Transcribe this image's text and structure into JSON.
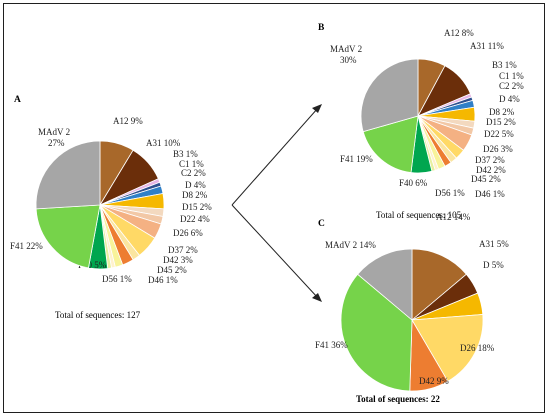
{
  "arrow_color": "#222222",
  "chart_data": [
    {
      "type": "pie",
      "panel": "A",
      "total_text": "Total of sequences: 127",
      "slices": [
        {
          "name": "A12",
          "label": "A12 9%",
          "value": 9,
          "color": "#a8682a"
        },
        {
          "name": "A31",
          "label": "A31 10%",
          "value": 10,
          "color": "#6b2e0a"
        },
        {
          "name": "B3",
          "label": "B3 1%",
          "value": 1,
          "color": "#e7b6e6"
        },
        {
          "name": "C1",
          "label": "C1 1%",
          "value": 1,
          "color": "#2e4f8f"
        },
        {
          "name": "C2",
          "label": "C2 2%",
          "value": 2,
          "color": "#2f7fc7"
        },
        {
          "name": "D",
          "label": "D 4%",
          "value": 4,
          "color": "#f5b800"
        },
        {
          "name": "D8",
          "label": "D8 2%",
          "value": 2,
          "color": "#f3d9bf"
        },
        {
          "name": "D15",
          "label": "D15 2%",
          "value": 2,
          "color": "#f2c8a6"
        },
        {
          "name": "D22",
          "label": "D22 4%",
          "value": 4,
          "color": "#f4b183"
        },
        {
          "name": "D26",
          "label": "D26 6%",
          "value": 6,
          "color": "#ffd966"
        },
        {
          "name": "D37",
          "label": "D37 2%",
          "value": 2,
          "color": "#fbe5a0"
        },
        {
          "name": "D42",
          "label": "D42 3%",
          "value": 3,
          "color": "#ed7d31"
        },
        {
          "name": "D45",
          "label": "D45 2%",
          "value": 2,
          "color": "#f8f39a"
        },
        {
          "name": "D46",
          "label": "D46 1%",
          "value": 1,
          "color": "#fff2cc"
        },
        {
          "name": "D56",
          "label": "D56 1%",
          "value": 1,
          "color": "#e8f0a0"
        },
        {
          "name": "F40",
          "label": "F40 5%",
          "value": 5,
          "color": "#00a64f"
        },
        {
          "name": "F41",
          "label": "F41 22%",
          "value": 22,
          "color": "#76d34a"
        },
        {
          "name": "MAdV 2",
          "label": "MAdV 2\n27%",
          "value": 27,
          "color": "#a6a6a6"
        }
      ]
    },
    {
      "type": "pie",
      "panel": "B",
      "total_text": "Total of sequences: 105",
      "slices": [
        {
          "name": "A12",
          "label": "A12 8%",
          "value": 8,
          "color": "#a8682a"
        },
        {
          "name": "A31",
          "label": "A31 11%",
          "value": 11,
          "color": "#6b2e0a"
        },
        {
          "name": "B3",
          "label": "B3 1%",
          "value": 1,
          "color": "#e7b6e6"
        },
        {
          "name": "C1",
          "label": "C1 1%",
          "value": 1,
          "color": "#2e4f8f"
        },
        {
          "name": "C2",
          "label": "C2 2%",
          "value": 2,
          "color": "#2f7fc7"
        },
        {
          "name": "D",
          "label": "D 4%",
          "value": 4,
          "color": "#f5b800"
        },
        {
          "name": "D8",
          "label": "D8 2%",
          "value": 2,
          "color": "#f3d9bf"
        },
        {
          "name": "D15",
          "label": "D15 2%",
          "value": 2,
          "color": "#f2c8a6"
        },
        {
          "name": "D22",
          "label": "D22 5%",
          "value": 5,
          "color": "#f4b183"
        },
        {
          "name": "D26",
          "label": "D26 3%",
          "value": 3,
          "color": "#ffd966"
        },
        {
          "name": "D37",
          "label": "D37 2%",
          "value": 2,
          "color": "#fbe5a0"
        },
        {
          "name": "D42",
          "label": "D42 2%",
          "value": 2,
          "color": "#ed7d31"
        },
        {
          "name": "D45",
          "label": "D45 2%",
          "value": 2,
          "color": "#f8f39a"
        },
        {
          "name": "D46",
          "label": "D46 1%",
          "value": 1,
          "color": "#fff2cc"
        },
        {
          "name": "D56",
          "label": "D56 1%",
          "value": 1,
          "color": "#e8f0a0"
        },
        {
          "name": "F40",
          "label": "F40 6%",
          "value": 6,
          "color": "#00a64f"
        },
        {
          "name": "F41",
          "label": "F41 19%",
          "value": 19,
          "color": "#76d34a"
        },
        {
          "name": "MAdV 2",
          "label": "MAdV 2\n30%",
          "value": 30,
          "color": "#a6a6a6"
        }
      ]
    },
    {
      "type": "pie",
      "panel": "C",
      "total_text": "Total of sequences: 22",
      "slices": [
        {
          "name": "A12",
          "label": "A12 14%",
          "value": 14,
          "color": "#a8682a"
        },
        {
          "name": "A31",
          "label": "A31 5%",
          "value": 5,
          "color": "#6b2e0a"
        },
        {
          "name": "D",
          "label": "D 5%",
          "value": 5,
          "color": "#f5b800"
        },
        {
          "name": "D26",
          "label": "D26 18%",
          "value": 18,
          "color": "#ffd966"
        },
        {
          "name": "D42",
          "label": "D42 9%",
          "value": 9,
          "color": "#ed7d31"
        },
        {
          "name": "F41",
          "label": "F41 36%",
          "value": 36,
          "color": "#76d34a"
        },
        {
          "name": "MAdV 2",
          "label": "MAdV 2 14%",
          "value": 14,
          "color": "#a6a6a6"
        }
      ]
    }
  ]
}
